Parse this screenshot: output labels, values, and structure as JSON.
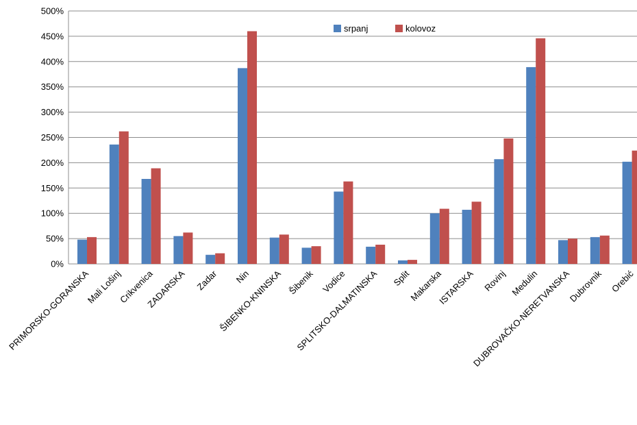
{
  "chart_data": {
    "type": "bar",
    "categories": [
      "PRIMORSKO-GORANSKA",
      "Mali Lošinj",
      "Crikvenica",
      "ZADARSKA",
      "Zadar",
      "Nin",
      "ŠIBENKO-KNINSKA",
      "Šibenik",
      "Vodice",
      "SPLITSKO-DALMATINSKA",
      "Split",
      "Makarska",
      "ISTARSKA",
      "Rovinj",
      "Medulin",
      "DUBROVAČKO-NERETVANSKA",
      "Dubrovnik",
      "Orebić"
    ],
    "series": [
      {
        "name": "srpanj",
        "color": "#4f81bd",
        "values": [
          48,
          236,
          168,
          55,
          18,
          387,
          52,
          32,
          143,
          34,
          7,
          100,
          107,
          207,
          389,
          47,
          53,
          202
        ]
      },
      {
        "name": "kolovoz",
        "color": "#c0504d",
        "values": [
          53,
          262,
          189,
          62,
          21,
          460,
          58,
          35,
          163,
          38,
          8,
          109,
          123,
          248,
          446,
          50,
          56,
          224
        ]
      }
    ],
    "ylim": [
      0,
      500
    ],
    "yticks": [
      "0%",
      "50%",
      "100%",
      "150%",
      "200%",
      "250%",
      "300%",
      "350%",
      "400%",
      "450%",
      "500%"
    ],
    "grid": true,
    "legend_position": "top-center"
  }
}
